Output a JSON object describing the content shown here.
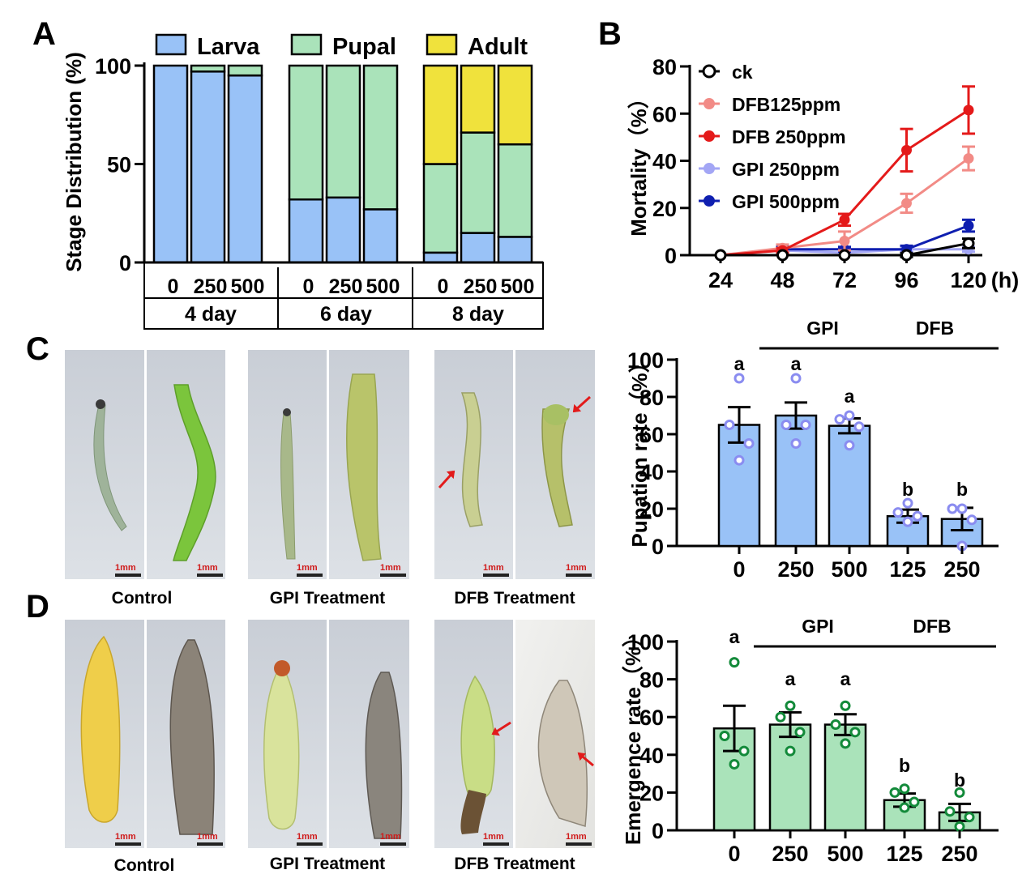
{
  "panels": {
    "a": "A",
    "b": "B",
    "c": "C",
    "d": "D"
  },
  "colors": {
    "larva": "#99c2f7",
    "pupal": "#aae3ba",
    "adult": "#f0e23c",
    "bar_c": "#99c2f7",
    "dot_c": "#8a8cf0",
    "bar_d": "#aae3ba",
    "dot_d": "#138a3a",
    "ck": "#000000",
    "dfb125": "#f28b86",
    "dfb250": "#e41a1a",
    "gpi250": "#a3a6f5",
    "gpi500": "#0f1fb0"
  },
  "chart_data": [
    {
      "id": "A",
      "type": "bar",
      "stacked": true,
      "ylabel": "Stage Distribution (%)",
      "ylim": [
        0,
        100
      ],
      "yticks": [
        0,
        50,
        100
      ],
      "legend": {
        "position": "top"
      },
      "groups": [
        {
          "label": "4 day",
          "categories": [
            "0",
            "250",
            "500"
          ]
        },
        {
          "label": "6 day",
          "categories": [
            "0",
            "250",
            "500"
          ]
        },
        {
          "label": "8 day",
          "categories": [
            "0",
            "250",
            "500"
          ]
        }
      ],
      "series": [
        {
          "name": "Larva",
          "values": [
            100,
            97,
            95,
            32,
            33,
            27,
            5,
            15,
            13
          ]
        },
        {
          "name": "Pupal",
          "values": [
            0,
            3,
            5,
            68,
            67,
            73,
            45,
            51,
            47
          ]
        },
        {
          "name": "Adult",
          "values": [
            0,
            0,
            0,
            0,
            0,
            0,
            50,
            34,
            40
          ]
        }
      ]
    },
    {
      "id": "B",
      "type": "line",
      "ylabel": "Mortality（%）",
      "xunit": "(h)",
      "x": [
        24,
        48,
        72,
        96,
        120
      ],
      "ylim": [
        0,
        80
      ],
      "yticks": [
        0,
        20,
        40,
        60,
        80
      ],
      "legend": {
        "position": "top-left"
      },
      "series": [
        {
          "name": "ck",
          "values": [
            0,
            0,
            0,
            0,
            5
          ],
          "err": [
            0,
            0,
            0,
            0.8,
            2
          ]
        },
        {
          "name": "DFB125ppm",
          "values": [
            0,
            3,
            6,
            22,
            41
          ],
          "err": [
            0,
            1.5,
            4,
            4,
            5
          ]
        },
        {
          "name": "DFB 250ppm",
          "values": [
            0,
            2,
            15,
            44.5,
            61.5
          ],
          "err": [
            0,
            1,
            2.5,
            9,
            10
          ]
        },
        {
          "name": "GPI 250ppm",
          "values": [
            0,
            2,
            1,
            2.5,
            2.5
          ],
          "err": [
            0,
            1,
            1,
            1,
            1
          ]
        },
        {
          "name": "GPI 500ppm",
          "values": [
            0,
            2.5,
            2.5,
            2.5,
            12.5
          ],
          "err": [
            0,
            1,
            1,
            1.5,
            2.5
          ]
        }
      ]
    },
    {
      "id": "C",
      "type": "bar",
      "ylabel": "Pupation rate（%）",
      "ylim": [
        0,
        100
      ],
      "yticks": [
        0,
        20,
        40,
        60,
        80,
        100
      ],
      "categories": [
        "0",
        "250",
        "500",
        "125",
        "250"
      ],
      "values": [
        65,
        70,
        64.5,
        16,
        14.5
      ],
      "sem": [
        9.5,
        7,
        4,
        3.5,
        6
      ],
      "points": [
        [
          90,
          65,
          55,
          46
        ],
        [
          90,
          65,
          65,
          55
        ],
        [
          70,
          68,
          64,
          54
        ],
        [
          23,
          18,
          16,
          13
        ],
        [
          20,
          20,
          14,
          0
        ]
      ],
      "letters": [
        "a",
        "a",
        "a",
        "b",
        "b"
      ],
      "brackets": [
        {
          "label": "GPI",
          "from": 1,
          "to": 2
        },
        {
          "label": "DFB",
          "from": 3,
          "to": 4
        }
      ]
    },
    {
      "id": "D",
      "type": "bar",
      "ylabel": "Emergence rate（%）",
      "ylim": [
        0,
        100
      ],
      "yticks": [
        0,
        20,
        40,
        60,
        80,
        100
      ],
      "categories": [
        "0",
        "250",
        "500",
        "125",
        "250"
      ],
      "values": [
        54,
        56,
        56,
        16,
        9.5
      ],
      "sem": [
        12,
        6.5,
        5.5,
        3.5,
        4.5
      ],
      "points": [
        [
          89,
          50,
          42,
          35
        ],
        [
          66,
          60,
          52,
          42
        ],
        [
          66,
          56,
          52,
          46
        ],
        [
          22,
          20,
          15,
          12
        ],
        [
          20,
          10,
          7,
          2
        ]
      ],
      "letters": [
        "a",
        "a",
        "a",
        "b",
        "b"
      ],
      "brackets": [
        {
          "label": "GPI",
          "from": 1,
          "to": 2
        },
        {
          "label": "DFB",
          "from": 3,
          "to": 4
        }
      ]
    }
  ],
  "photos": {
    "c": {
      "scale_label": "1mm",
      "captions": [
        "Control",
        "GPI Treatment",
        "DFB Treatment"
      ]
    },
    "d": {
      "scale_label": "1mm",
      "captions": [
        "Control",
        "GPI Treatment",
        "DFB Treatment"
      ]
    }
  }
}
